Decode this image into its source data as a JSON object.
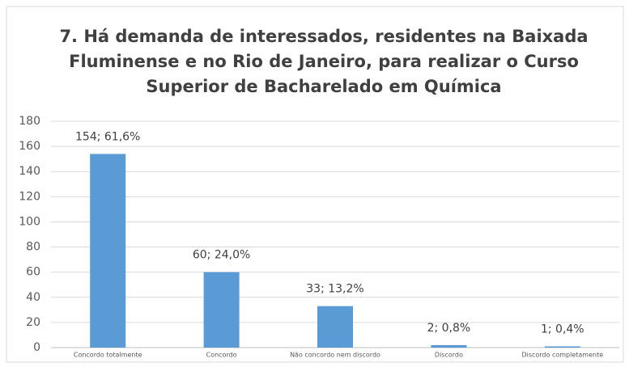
{
  "chart_data": {
    "type": "bar",
    "title": [
      "7. Há demanda de interessados, residentes na Baixada",
      "Fluminense e no Rio de Janeiro, para realizar o Curso",
      "Superior de Bacharelado em Química"
    ],
    "categories": [
      "Concordo totalmente",
      "Concordo",
      "Não concordo nem discordo",
      "Discordo",
      "Discordo completamente"
    ],
    "values": [
      154,
      60,
      33,
      2,
      1
    ],
    "value_labels": [
      "154; 61,6%",
      "60; 24,0%",
      "33; 13,2%",
      "2; 0,8%",
      "1; 0,4%"
    ],
    "color": "#5b9bd5",
    "ylim": [
      0,
      180
    ],
    "yticks": [
      0,
      20,
      40,
      60,
      80,
      100,
      120,
      140,
      160,
      180
    ],
    "grid": true
  }
}
